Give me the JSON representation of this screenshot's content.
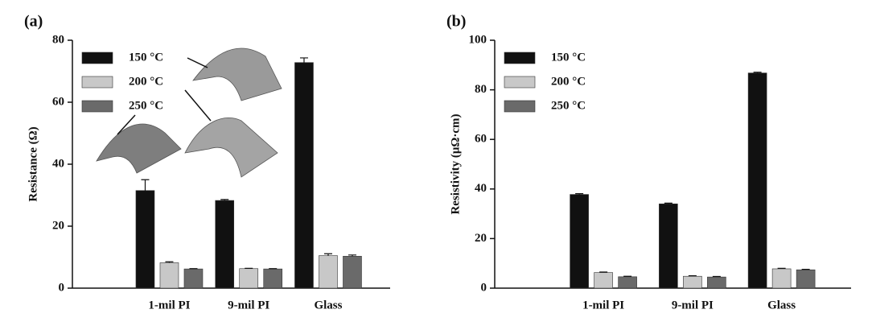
{
  "chart_data": [
    {
      "type": "bar",
      "label": "(a)",
      "y_label": "Resistance (Ω)",
      "categories": [
        "1-mil PI",
        "9-mil PI",
        "Glass"
      ],
      "series": [
        {
          "name": "150 °C",
          "color": "#111111",
          "values": [
            31.5,
            28.3,
            72.8
          ],
          "errors": [
            3.5,
            0.3,
            1.5
          ]
        },
        {
          "name": "200 °C",
          "color": "#c8c8c8",
          "values": [
            8.2,
            6.3,
            10.5
          ],
          "errors": [
            0.3,
            0.1,
            0.6
          ]
        },
        {
          "name": "250 °C",
          "color": "#6a6a6a",
          "values": [
            6.2,
            6.2,
            10.3
          ],
          "errors": [
            0.1,
            0.1,
            0.4
          ]
        }
      ],
      "ylim": [
        0,
        80
      ],
      "yticks": [
        0,
        20,
        40,
        60,
        80
      ],
      "legend": "upper left"
    },
    {
      "type": "bar",
      "label": "(b)",
      "y_label": "Resistivity (μΩ·cm)",
      "categories": [
        "1-mil PI",
        "9-mil PI",
        "Glass"
      ],
      "series": [
        {
          "name": "150 °C",
          "color": "#111111",
          "values": [
            37.8,
            34,
            86.8
          ],
          "errors": [
            0.3,
            0.3,
            0.3
          ]
        },
        {
          "name": "200 °C",
          "color": "#c8c8c8",
          "values": [
            6.3,
            4.8,
            7.8
          ],
          "errors": [
            0.2,
            0.2,
            0.2
          ]
        },
        {
          "name": "250 °C",
          "color": "#6a6a6a",
          "values": [
            4.6,
            4.5,
            7.4
          ],
          "errors": [
            0.2,
            0.2,
            0.2
          ]
        }
      ],
      "ylim": [
        0,
        100
      ],
      "yticks": [
        0,
        20,
        40,
        60,
        80,
        100
      ],
      "legend": "upper left"
    }
  ]
}
